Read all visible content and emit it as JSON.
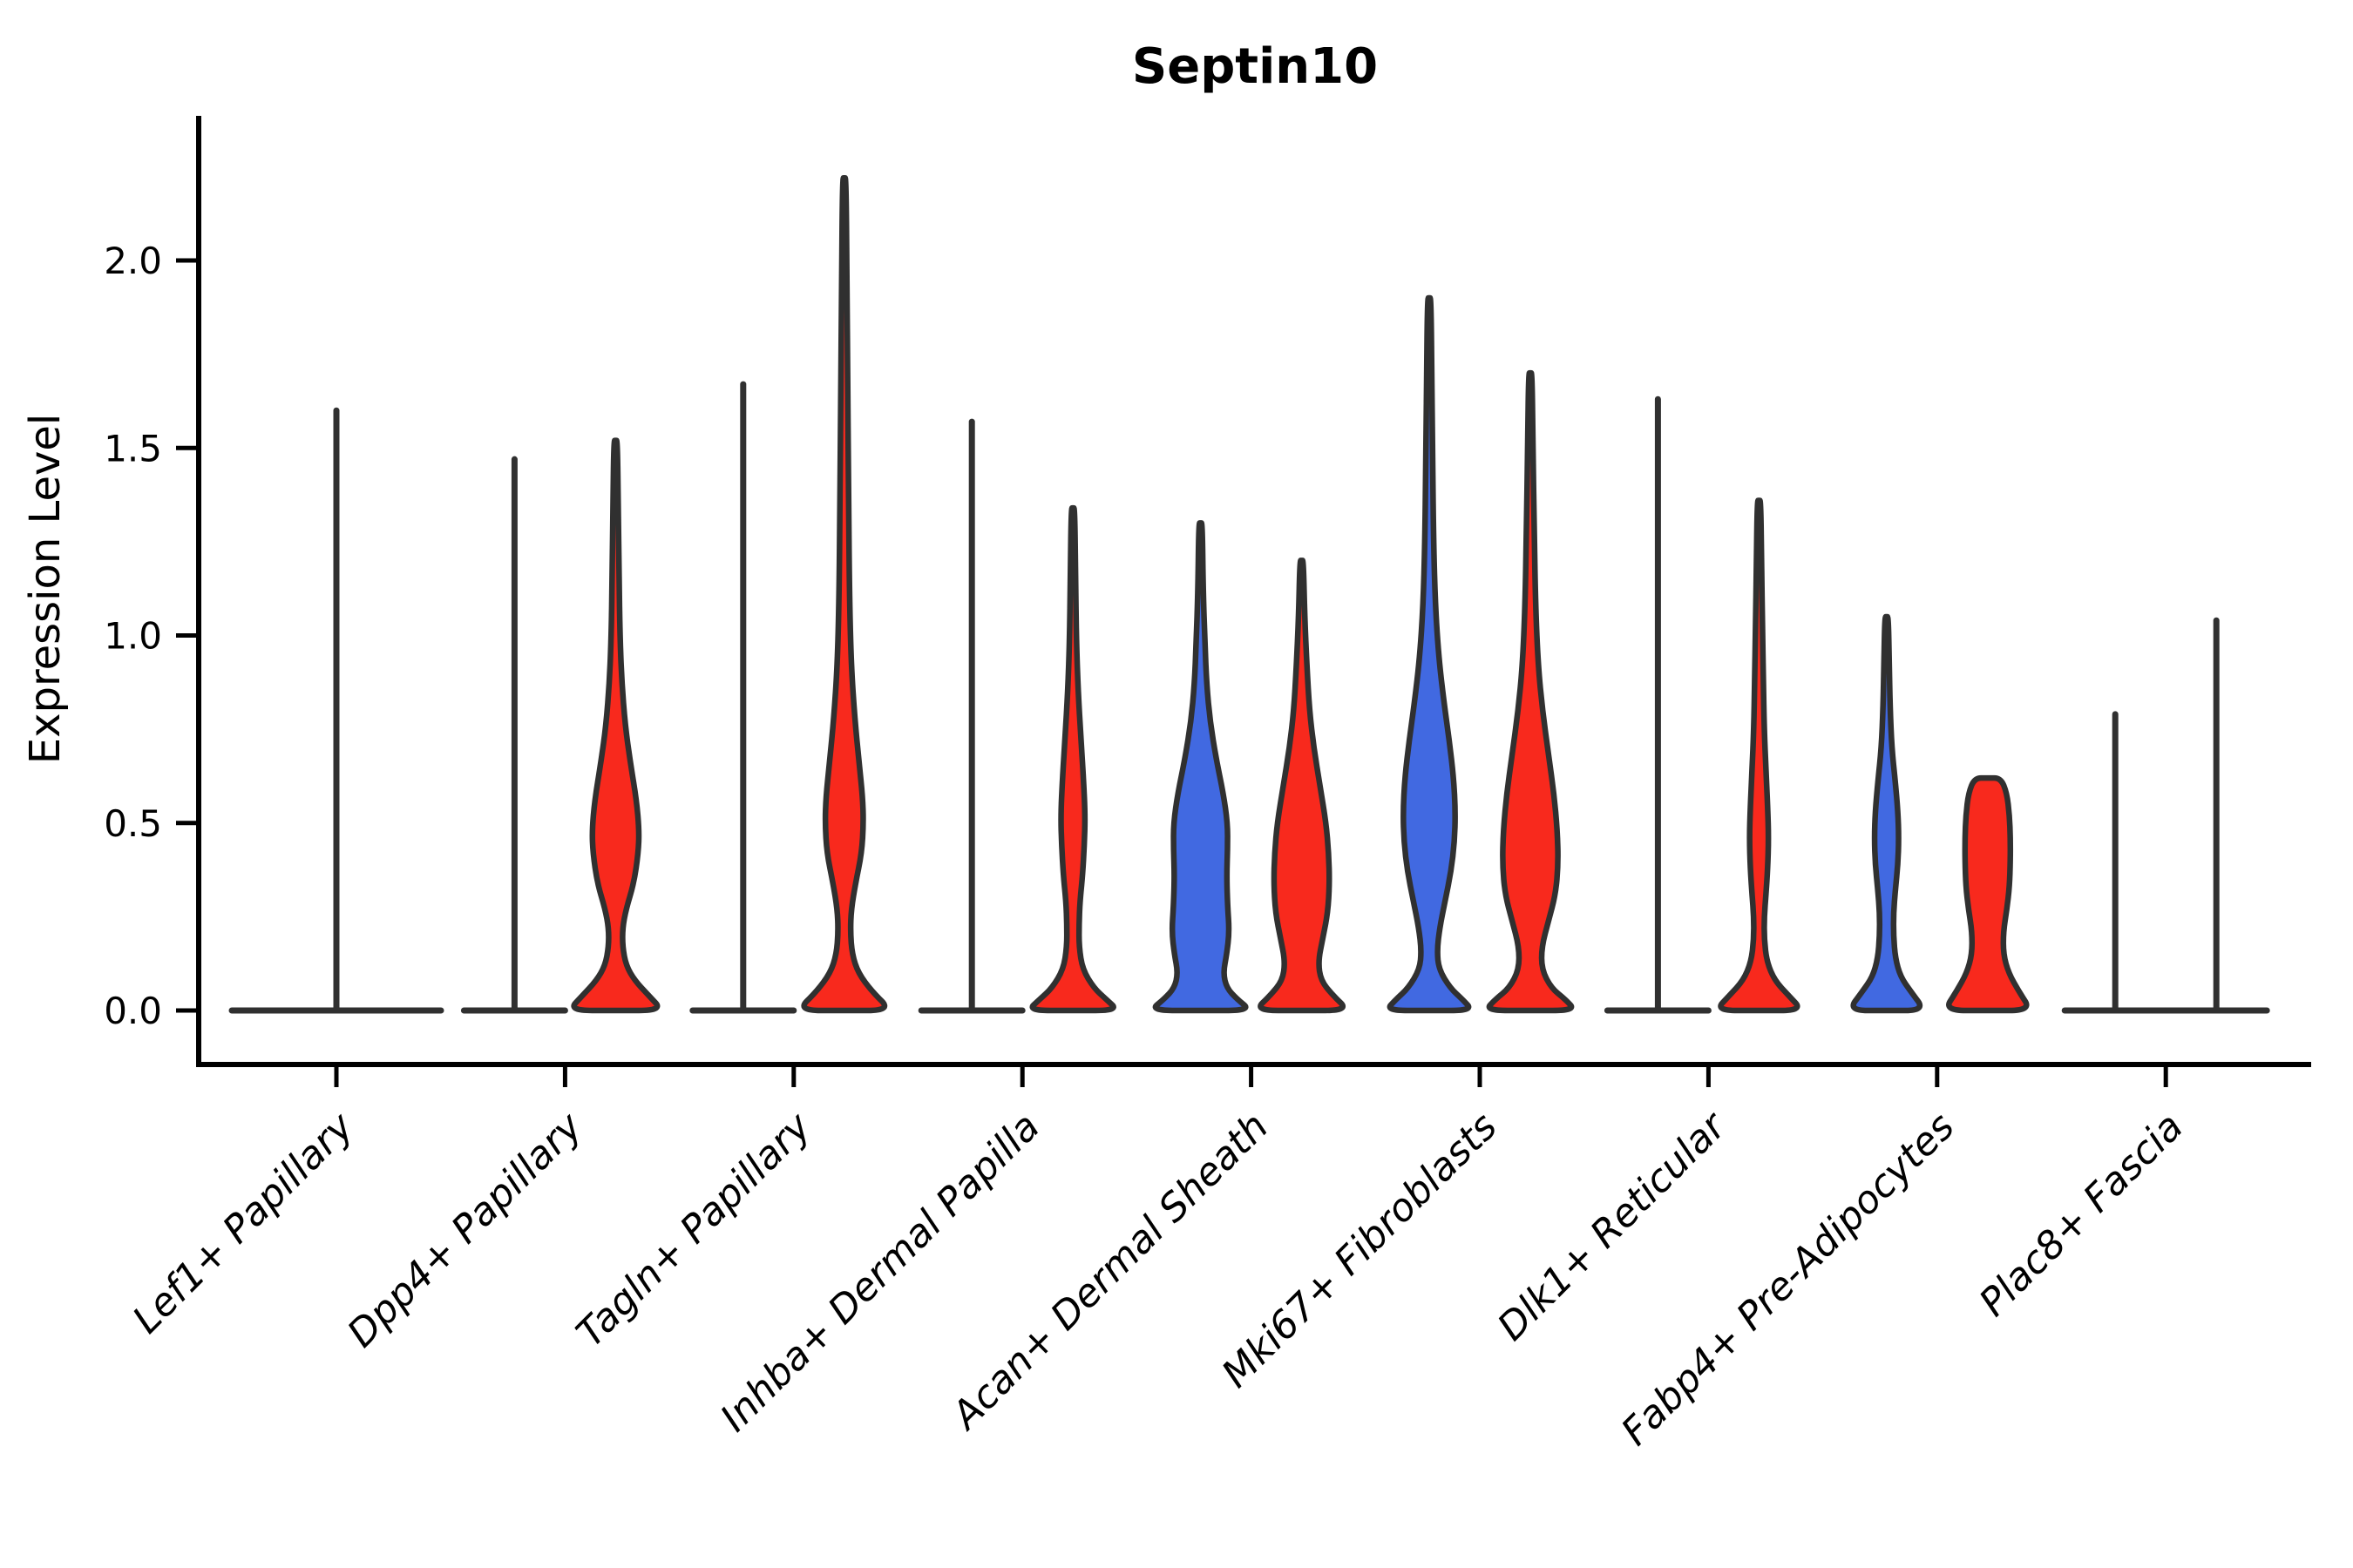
{
  "title": "Septin10",
  "ylabel": "Expression Level",
  "chart_data": {
    "type": "violin",
    "title": "Septin10",
    "ylabel": "Expression Level",
    "yticks": [
      0.0,
      0.5,
      1.0,
      1.5,
      2.0
    ],
    "ytick_labels": [
      "0.0",
      "0.5",
      "1.0",
      "1.5",
      "2.0"
    ],
    "ylim_display": [
      -0.14,
      2.39
    ],
    "grid": false,
    "legend": "none",
    "categories": [
      "Lef1+ Papillary",
      "Dpp4+ Papillary",
      "Tagln+ Papillary",
      "Inhba+ Dermal Papilla",
      "Acan+ Dermal Sheath",
      "Mki67+ Fibroblasts",
      "Dlk1+ Reticular",
      "Fabp4+ Pre-Adipocytes",
      "Plac8+ Fascia"
    ],
    "split_colors": {
      "left": "#4169E1",
      "right": "#F8291D"
    },
    "outline_color": "#303030",
    "violins": [
      {
        "category_index": 0,
        "position": "center",
        "kind": "collapsed",
        "fill": "none",
        "max": 1.6
      },
      {
        "category_index": 1,
        "position": "left",
        "kind": "collapsed",
        "fill": "blue",
        "max": 1.47
      },
      {
        "category_index": 1,
        "position": "right",
        "kind": "shaped",
        "fill": "red",
        "max": 1.52,
        "profile": [
          [
            1.52,
            2
          ],
          [
            1.35,
            3
          ],
          [
            1.15,
            4
          ],
          [
            1.0,
            5
          ],
          [
            0.88,
            7
          ],
          [
            0.76,
            11
          ],
          [
            0.66,
            17
          ],
          [
            0.56,
            24
          ],
          [
            0.48,
            27
          ],
          [
            0.42,
            26
          ],
          [
            0.34,
            21
          ],
          [
            0.27,
            12
          ],
          [
            0.22,
            8
          ],
          [
            0.17,
            8
          ],
          [
            0.12,
            12
          ],
          [
            0.08,
            22
          ],
          [
            0.04,
            38
          ],
          [
            0.0,
            54
          ]
        ]
      },
      {
        "category_index": 2,
        "position": "left",
        "kind": "collapsed",
        "fill": "blue",
        "max": 1.67
      },
      {
        "category_index": 2,
        "position": "right",
        "kind": "shaped",
        "fill": "red",
        "max": 2.22,
        "profile": [
          [
            2.22,
            2
          ],
          [
            1.95,
            3
          ],
          [
            1.65,
            4
          ],
          [
            1.35,
            5
          ],
          [
            1.1,
            6
          ],
          [
            0.92,
            8
          ],
          [
            0.78,
            12
          ],
          [
            0.66,
            17
          ],
          [
            0.57,
            21
          ],
          [
            0.5,
            22
          ],
          [
            0.42,
            20
          ],
          [
            0.34,
            13
          ],
          [
            0.27,
            8
          ],
          [
            0.21,
            7
          ],
          [
            0.15,
            9
          ],
          [
            0.1,
            16
          ],
          [
            0.05,
            32
          ],
          [
            0.0,
            54
          ]
        ]
      },
      {
        "category_index": 3,
        "position": "left",
        "kind": "collapsed",
        "fill": "blue",
        "max": 1.57
      },
      {
        "category_index": 3,
        "position": "right",
        "kind": "shaped",
        "fill": "red",
        "max": 1.34,
        "profile": [
          [
            1.34,
            2
          ],
          [
            1.15,
            3
          ],
          [
            0.98,
            4
          ],
          [
            0.85,
            6
          ],
          [
            0.73,
            9
          ],
          [
            0.62,
            12
          ],
          [
            0.52,
            14
          ],
          [
            0.44,
            13
          ],
          [
            0.36,
            11
          ],
          [
            0.29,
            8
          ],
          [
            0.23,
            7
          ],
          [
            0.17,
            7
          ],
          [
            0.11,
            11
          ],
          [
            0.06,
            24
          ],
          [
            0.03,
            38
          ],
          [
            0.0,
            52
          ]
        ]
      },
      {
        "category_index": 4,
        "position": "left",
        "kind": "shaped",
        "fill": "blue",
        "max": 1.3,
        "profile": [
          [
            1.3,
            2
          ],
          [
            1.12,
            3
          ],
          [
            0.98,
            5
          ],
          [
            0.87,
            7
          ],
          [
            0.77,
            11
          ],
          [
            0.67,
            18
          ],
          [
            0.58,
            26
          ],
          [
            0.5,
            31
          ],
          [
            0.43,
            31
          ],
          [
            0.36,
            30
          ],
          [
            0.28,
            31
          ],
          [
            0.21,
            33
          ],
          [
            0.15,
            30
          ],
          [
            0.1,
            26
          ],
          [
            0.06,
            30
          ],
          [
            0.03,
            42
          ],
          [
            0.0,
            58
          ]
        ]
      },
      {
        "category_index": 4,
        "position": "right",
        "kind": "shaped",
        "fill": "red",
        "max": 1.2,
        "profile": [
          [
            1.2,
            2
          ],
          [
            1.05,
            3.5
          ],
          [
            0.92,
            6
          ],
          [
            0.8,
            9
          ],
          [
            0.7,
            14
          ],
          [
            0.6,
            21
          ],
          [
            0.5,
            28
          ],
          [
            0.42,
            31
          ],
          [
            0.34,
            32
          ],
          [
            0.26,
            30
          ],
          [
            0.19,
            24
          ],
          [
            0.13,
            19
          ],
          [
            0.08,
            22
          ],
          [
            0.04,
            36
          ],
          [
            0.0,
            54
          ]
        ]
      },
      {
        "category_index": 5,
        "position": "left",
        "kind": "shaped",
        "fill": "blue",
        "max": 1.9,
        "profile": [
          [
            1.9,
            2
          ],
          [
            1.68,
            3
          ],
          [
            1.45,
            4
          ],
          [
            1.25,
            5
          ],
          [
            1.08,
            7
          ],
          [
            0.94,
            11
          ],
          [
            0.82,
            17
          ],
          [
            0.72,
            23
          ],
          [
            0.62,
            28
          ],
          [
            0.53,
            30
          ],
          [
            0.45,
            29
          ],
          [
            0.37,
            25
          ],
          [
            0.29,
            18
          ],
          [
            0.22,
            12
          ],
          [
            0.16,
            9
          ],
          [
            0.11,
            11
          ],
          [
            0.06,
            24
          ],
          [
            0.03,
            38
          ],
          [
            0.0,
            50
          ]
        ]
      },
      {
        "category_index": 5,
        "position": "right",
        "kind": "shaped",
        "fill": "red",
        "max": 1.7,
        "profile": [
          [
            1.7,
            2
          ],
          [
            1.5,
            3
          ],
          [
            1.28,
            4.5
          ],
          [
            1.08,
            6
          ],
          [
            0.92,
            9
          ],
          [
            0.8,
            14
          ],
          [
            0.68,
            21
          ],
          [
            0.58,
            27
          ],
          [
            0.48,
            31
          ],
          [
            0.39,
            32
          ],
          [
            0.31,
            29
          ],
          [
            0.24,
            21
          ],
          [
            0.17,
            13
          ],
          [
            0.11,
            13
          ],
          [
            0.06,
            24
          ],
          [
            0.03,
            40
          ],
          [
            0.0,
            52
          ]
        ]
      },
      {
        "category_index": 6,
        "position": "left",
        "kind": "collapsed",
        "fill": "blue",
        "max": 1.63
      },
      {
        "category_index": 6,
        "position": "right",
        "kind": "shaped",
        "fill": "red",
        "max": 1.36,
        "profile": [
          [
            1.36,
            2
          ],
          [
            1.18,
            3
          ],
          [
            1.02,
            4
          ],
          [
            0.88,
            5
          ],
          [
            0.75,
            6
          ],
          [
            0.64,
            8
          ],
          [
            0.54,
            10
          ],
          [
            0.46,
            11
          ],
          [
            0.38,
            10
          ],
          [
            0.31,
            8
          ],
          [
            0.25,
            6
          ],
          [
            0.19,
            6
          ],
          [
            0.13,
            9
          ],
          [
            0.08,
            18
          ],
          [
            0.04,
            34
          ],
          [
            0.0,
            50
          ]
        ]
      },
      {
        "category_index": 7,
        "position": "left",
        "kind": "shaped",
        "fill": "blue",
        "max": 1.05,
        "profile": [
          [
            1.05,
            2
          ],
          [
            0.93,
            3
          ],
          [
            0.81,
            4
          ],
          [
            0.7,
            6
          ],
          [
            0.61,
            10
          ],
          [
            0.53,
            13
          ],
          [
            0.46,
            14
          ],
          [
            0.39,
            13
          ],
          [
            0.32,
            10
          ],
          [
            0.26,
            8
          ],
          [
            0.2,
            8
          ],
          [
            0.14,
            10
          ],
          [
            0.09,
            16
          ],
          [
            0.05,
            28
          ],
          [
            0.0,
            44
          ]
        ]
      },
      {
        "category_index": 7,
        "position": "right",
        "kind": "shaped",
        "fill": "red",
        "max": 0.62,
        "profile": [
          [
            0.62,
            15
          ],
          [
            0.58,
            22
          ],
          [
            0.52,
            25
          ],
          [
            0.46,
            26
          ],
          [
            0.4,
            26
          ],
          [
            0.33,
            25
          ],
          [
            0.27,
            22
          ],
          [
            0.21,
            18
          ],
          [
            0.15,
            18
          ],
          [
            0.1,
            24
          ],
          [
            0.05,
            36
          ],
          [
            0.0,
            50
          ]
        ]
      },
      {
        "category_index": 8,
        "position": "left",
        "kind": "collapsed",
        "fill": "blue",
        "max": 0.79
      },
      {
        "category_index": 8,
        "position": "right",
        "kind": "collapsed",
        "fill": "red",
        "max": 1.04
      }
    ]
  }
}
